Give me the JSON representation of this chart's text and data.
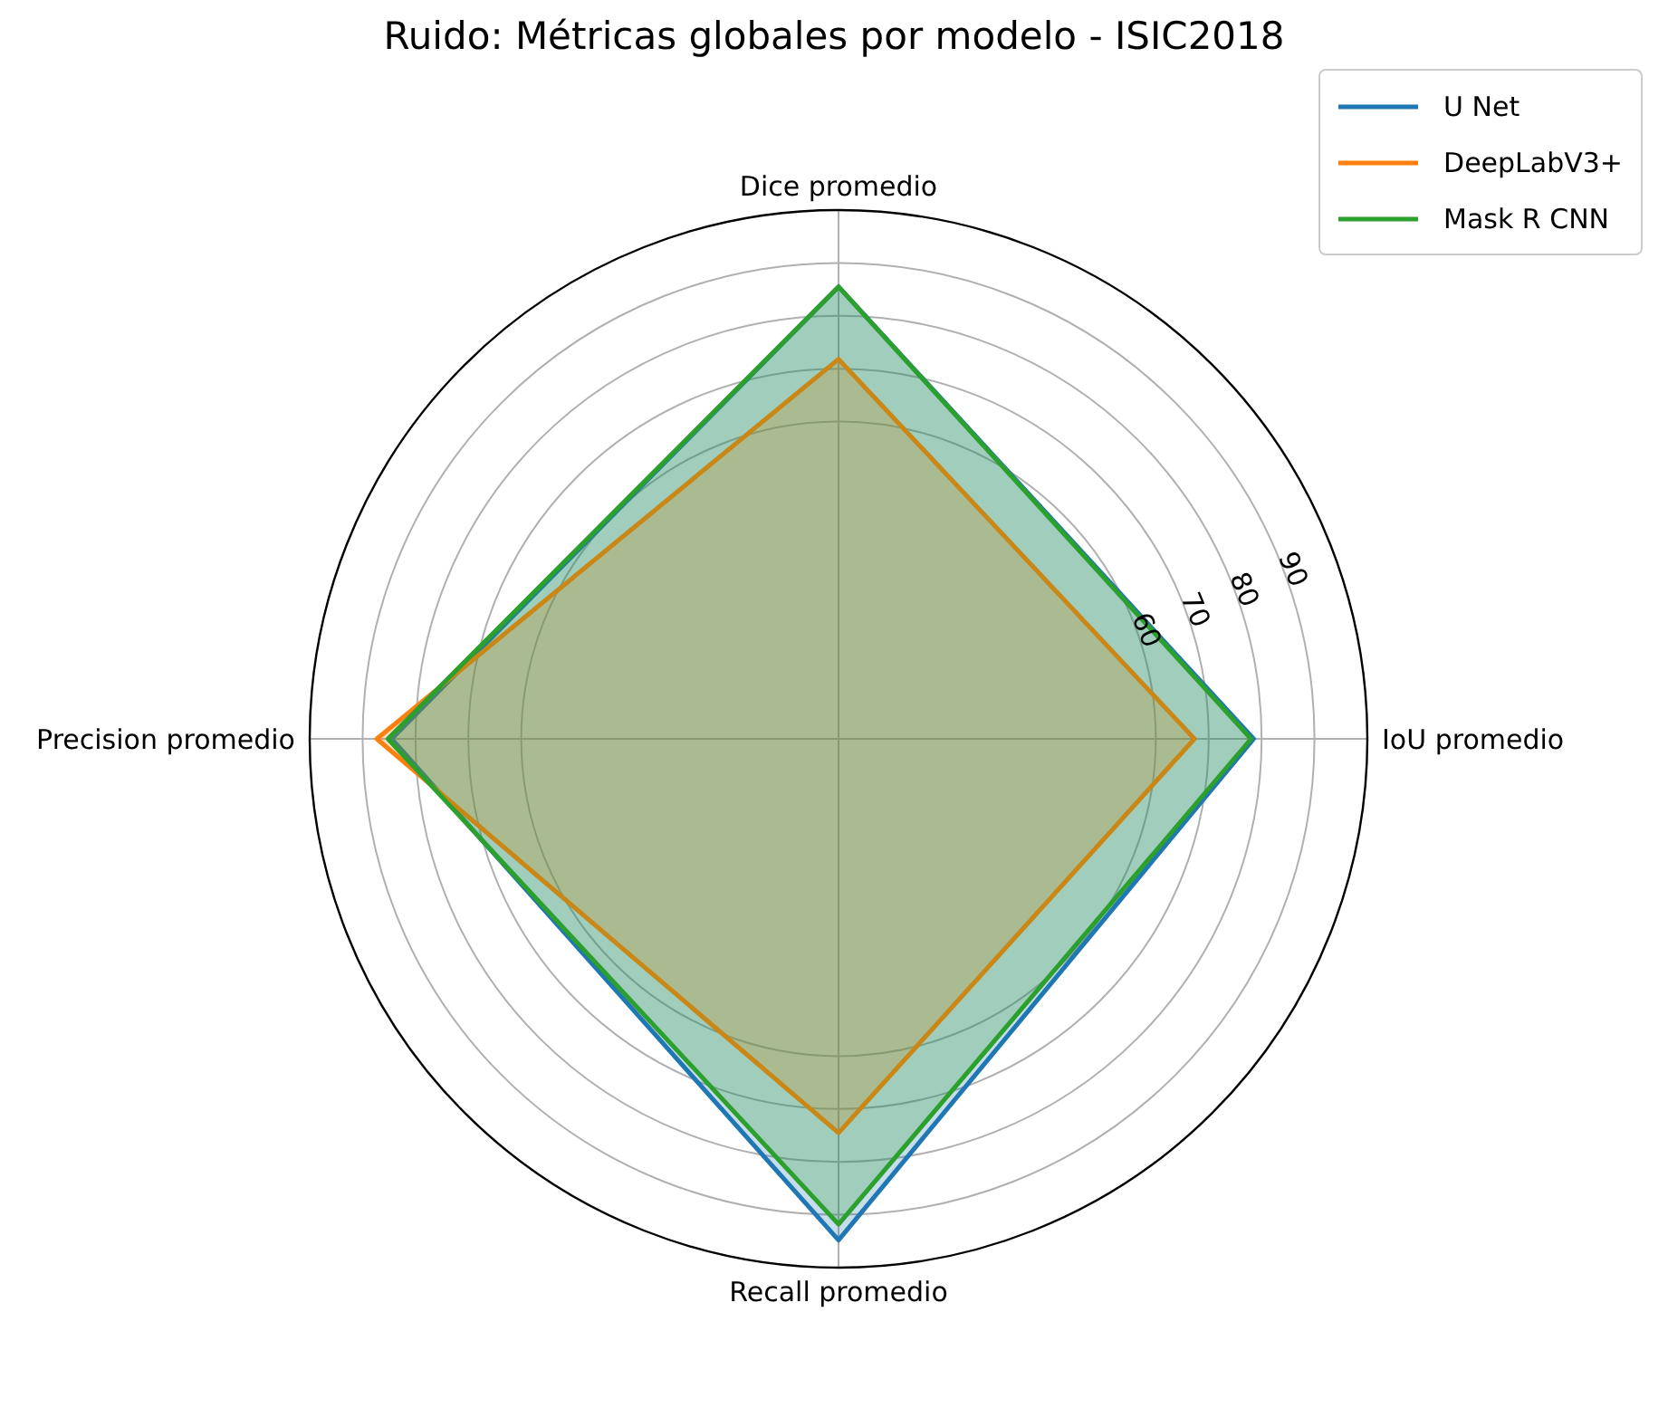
{
  "chart_data": {
    "type": "radar",
    "title": "Ruido: Métricas globales por modelo - ISIC2018",
    "categories": [
      "Dice promedio",
      "IoU promedio",
      "Recall promedio",
      "Precision promedio"
    ],
    "series": [
      {
        "name": "U Net",
        "color": "#1f77b4",
        "values": [
          85.5,
          78.5,
          94.8,
          84.5
        ]
      },
      {
        "name": "DeepLabV3+",
        "color": "#ff7f0e",
        "values": [
          71.8,
          67.3,
          74.5,
          87.3
        ]
      },
      {
        "name": "Mask R CNN",
        "color": "#2ca02c",
        "values": [
          85.5,
          78,
          91.8,
          85.2
        ]
      }
    ],
    "ylim": [
      0,
      100
    ],
    "yticks": [
      60,
      70,
      80,
      90
    ],
    "grid": true,
    "legend": "top right"
  }
}
